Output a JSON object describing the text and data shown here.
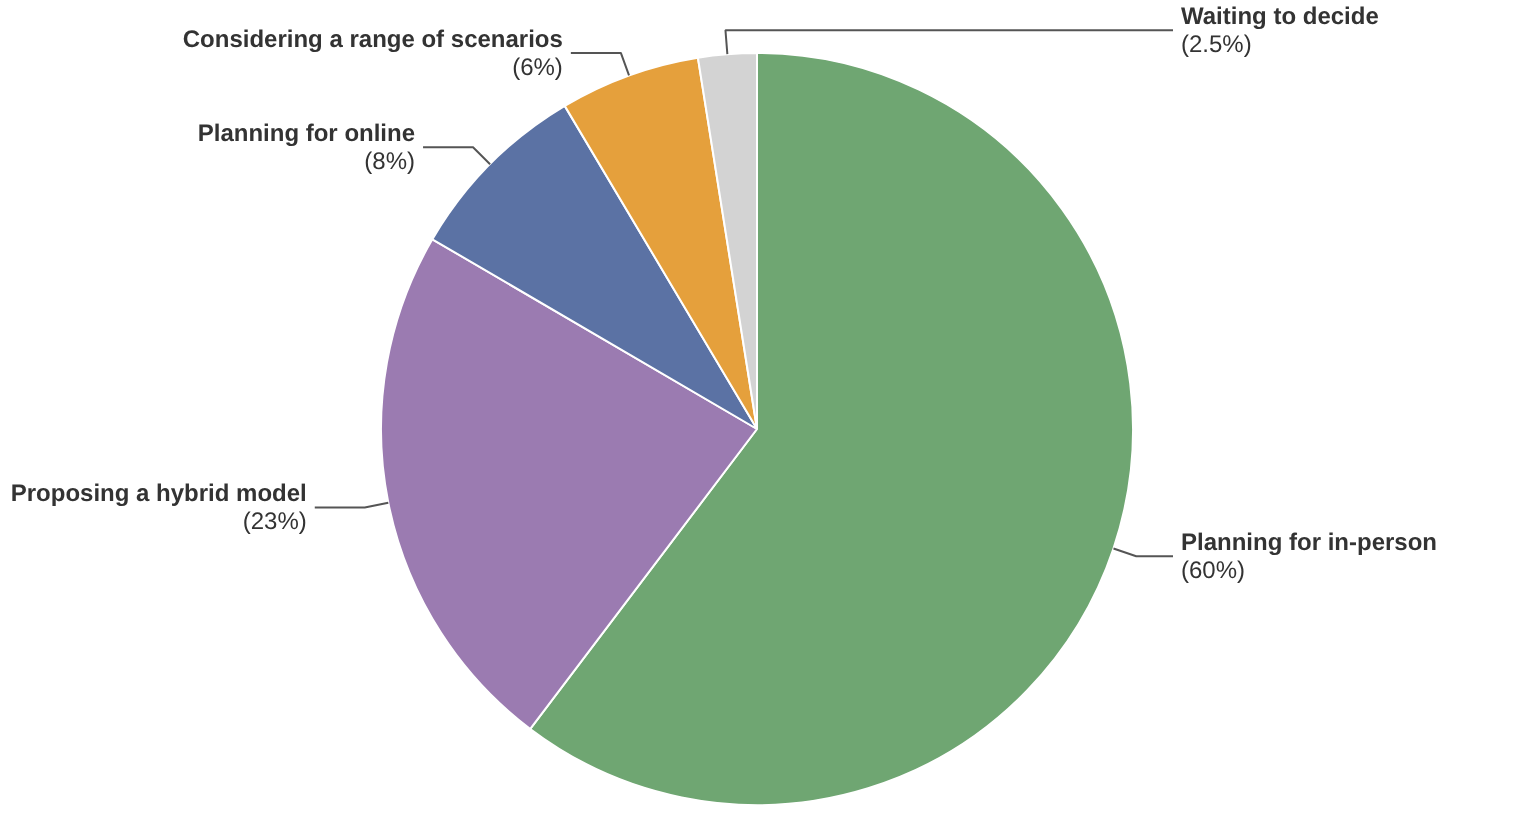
{
  "chart_data": {
    "type": "pie",
    "categories": [
      "Planning for in-person",
      "Proposing a hybrid model",
      "Planning for online",
      "Considering a range of scenarios",
      "Waiting to decide"
    ],
    "values": [
      60,
      23,
      8,
      6,
      2.5
    ],
    "value_labels": [
      "(60%)",
      "(23%)",
      "(8%)",
      "(6%)",
      "(2.5%)"
    ],
    "colors": [
      "#6fa672",
      "#9b7bb1",
      "#5b72a4",
      "#e5a03c",
      "#d3d3d3"
    ]
  }
}
